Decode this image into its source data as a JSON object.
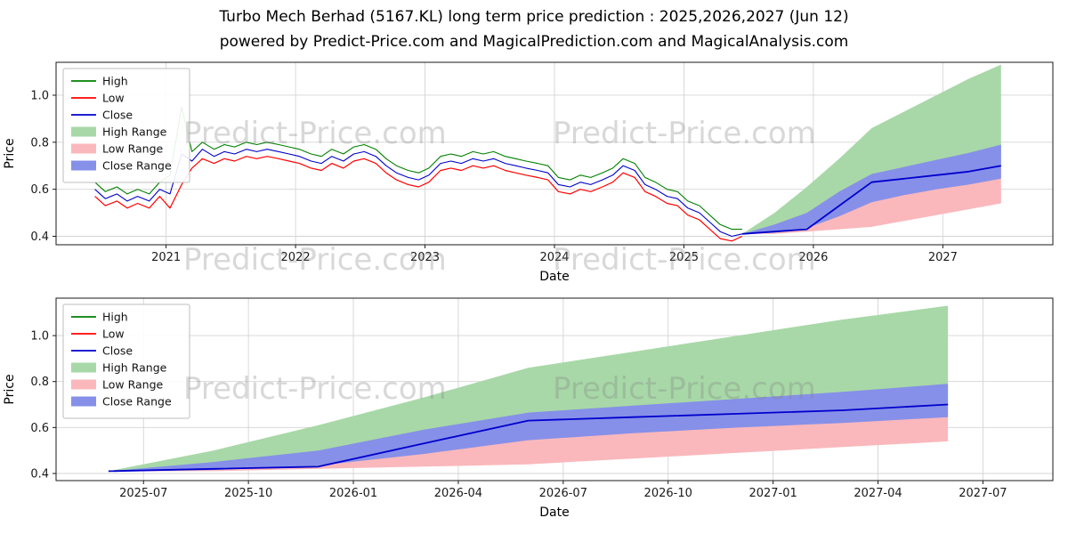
{
  "title": "Turbo Mech Berhad (5167.KL) long term price prediction : 2025,2026,2027 (Jun 12)",
  "subtitle": "powered by Predict-Price.com and MagicalPrediction.com and MagicalAnalysis.com",
  "watermark": "Predict-Price.com",
  "colors": {
    "high_line": "#008000",
    "low_line": "#ff0000",
    "close_line": "#0000cd",
    "high_range_fill": "#a8d8a8",
    "low_range_fill": "#fab8bc",
    "close_range_fill": "#8690e8"
  },
  "chart_data": [
    {
      "name": "price-history-and-forecast",
      "type": "line",
      "xlabel": "Date",
      "ylabel": "Price",
      "xlim": [
        2020.15,
        2027.85
      ],
      "ylim": [
        0.364,
        1.14
      ],
      "grid": true,
      "legend_position": "upper-left",
      "xticks": [
        {
          "v": 2021,
          "label": "2021"
        },
        {
          "v": 2022,
          "label": "2022"
        },
        {
          "v": 2023,
          "label": "2023"
        },
        {
          "v": 2024,
          "label": "2024"
        },
        {
          "v": 2025,
          "label": "2025"
        },
        {
          "v": 2026,
          "label": "2026"
        },
        {
          "v": 2027,
          "label": "2027"
        }
      ],
      "yticks": [
        {
          "v": 0.4,
          "label": "0.4"
        },
        {
          "v": 0.6,
          "label": "0.6"
        },
        {
          "v": 0.8,
          "label": "0.8"
        },
        {
          "v": 1.0,
          "label": "1.0"
        }
      ],
      "series": {
        "history_x": [
          2020.45,
          2020.53,
          2020.62,
          2020.7,
          2020.78,
          2020.87,
          2020.95,
          2021.03,
          2021.12,
          2021.2,
          2021.28,
          2021.37,
          2021.45,
          2021.53,
          2021.62,
          2021.7,
          2021.78,
          2021.87,
          2021.95,
          2022.03,
          2022.12,
          2022.2,
          2022.28,
          2022.37,
          2022.45,
          2022.53,
          2022.62,
          2022.7,
          2022.78,
          2022.87,
          2022.95,
          2023.03,
          2023.12,
          2023.2,
          2023.28,
          2023.37,
          2023.45,
          2023.53,
          2023.62,
          2023.7,
          2023.78,
          2023.87,
          2023.95,
          2024.03,
          2024.12,
          2024.2,
          2024.28,
          2024.37,
          2024.45,
          2024.53,
          2024.62,
          2024.7,
          2024.78,
          2024.87,
          2024.95,
          2025.03,
          2025.12,
          2025.2,
          2025.28,
          2025.37,
          2025.45
        ],
        "forecast_x": [
          2025.45,
          2025.7,
          2025.95,
          2026.2,
          2026.45,
          2026.7,
          2026.95,
          2027.2,
          2027.45
        ]
      },
      "bands": [
        {
          "name": "High Range",
          "color": "#a8d8a8",
          "x": "forecast_x",
          "top": [
            0.41,
            0.5,
            0.61,
            0.73,
            0.86,
            0.93,
            1.0,
            1.07,
            1.13
          ],
          "bottom": [
            0.41,
            0.42,
            0.43,
            0.53,
            0.63,
            0.645,
            0.66,
            0.675,
            0.7
          ]
        },
        {
          "name": "Low Range",
          "color": "#fab8bc",
          "x": "forecast_x",
          "top": [
            0.41,
            0.42,
            0.43,
            0.53,
            0.63,
            0.645,
            0.66,
            0.675,
            0.7
          ],
          "bottom": [
            0.41,
            0.41,
            0.42,
            0.43,
            0.44,
            0.465,
            0.49,
            0.515,
            0.54
          ]
        },
        {
          "name": "Close Range",
          "color": "#8690e8",
          "x": "forecast_x",
          "top": [
            0.41,
            0.45,
            0.5,
            0.59,
            0.665,
            0.695,
            0.725,
            0.755,
            0.79
          ],
          "bottom": [
            0.41,
            0.415,
            0.435,
            0.485,
            0.545,
            0.575,
            0.6,
            0.62,
            0.645
          ]
        }
      ],
      "lines": [
        {
          "name": "High",
          "color": "#008000",
          "width": 1.1,
          "x": "history_x",
          "y": [
            0.63,
            0.59,
            0.61,
            0.58,
            0.6,
            0.58,
            0.63,
            0.66,
            0.95,
            0.76,
            0.8,
            0.77,
            0.79,
            0.78,
            0.8,
            0.79,
            0.8,
            0.79,
            0.78,
            0.77,
            0.75,
            0.74,
            0.77,
            0.75,
            0.78,
            0.79,
            0.77,
            0.73,
            0.7,
            0.68,
            0.67,
            0.69,
            0.74,
            0.75,
            0.74,
            0.76,
            0.75,
            0.76,
            0.74,
            0.73,
            0.72,
            0.71,
            0.7,
            0.65,
            0.64,
            0.66,
            0.65,
            0.67,
            0.69,
            0.73,
            0.71,
            0.65,
            0.63,
            0.6,
            0.59,
            0.55,
            0.53,
            0.49,
            0.45,
            0.43,
            0.43
          ]
        },
        {
          "name": "Close",
          "color": "#0000cd",
          "width": 1.1,
          "x": "history_x",
          "y": [
            0.6,
            0.56,
            0.58,
            0.55,
            0.57,
            0.55,
            0.6,
            0.58,
            0.75,
            0.72,
            0.77,
            0.74,
            0.76,
            0.75,
            0.77,
            0.76,
            0.77,
            0.76,
            0.75,
            0.74,
            0.72,
            0.71,
            0.74,
            0.72,
            0.75,
            0.76,
            0.74,
            0.7,
            0.67,
            0.65,
            0.64,
            0.66,
            0.71,
            0.72,
            0.71,
            0.73,
            0.72,
            0.73,
            0.71,
            0.7,
            0.69,
            0.68,
            0.67,
            0.62,
            0.61,
            0.63,
            0.62,
            0.64,
            0.66,
            0.7,
            0.68,
            0.62,
            0.6,
            0.57,
            0.56,
            0.52,
            0.5,
            0.46,
            0.42,
            0.4,
            0.41
          ]
        },
        {
          "name": "Low",
          "color": "#ff0000",
          "width": 1.2,
          "x": "history_x",
          "y": [
            0.57,
            0.53,
            0.55,
            0.52,
            0.54,
            0.52,
            0.57,
            0.52,
            0.62,
            0.69,
            0.73,
            0.71,
            0.73,
            0.72,
            0.74,
            0.73,
            0.74,
            0.73,
            0.72,
            0.71,
            0.69,
            0.68,
            0.71,
            0.69,
            0.72,
            0.73,
            0.71,
            0.67,
            0.64,
            0.62,
            0.61,
            0.63,
            0.68,
            0.69,
            0.68,
            0.7,
            0.69,
            0.7,
            0.68,
            0.67,
            0.66,
            0.65,
            0.64,
            0.59,
            0.58,
            0.6,
            0.59,
            0.61,
            0.63,
            0.67,
            0.65,
            0.59,
            0.57,
            0.54,
            0.53,
            0.49,
            0.47,
            0.43,
            0.39,
            0.38,
            0.4
          ]
        },
        {
          "name": "Close Forecast",
          "color": "#0000cd",
          "width": 1.8,
          "x": "forecast_x",
          "y": [
            0.41,
            0.42,
            0.43,
            0.53,
            0.63,
            0.645,
            0.66,
            0.675,
            0.7
          ]
        }
      ],
      "legend": [
        {
          "label": "High",
          "type": "line",
          "color": "#008000"
        },
        {
          "label": "Low",
          "type": "line",
          "color": "#ff0000"
        },
        {
          "label": "Close",
          "type": "line",
          "color": "#0000cd"
        },
        {
          "label": "High Range",
          "type": "patch",
          "color": "#a8d8a8"
        },
        {
          "label": "Low Range",
          "type": "patch",
          "color": "#fab8bc"
        },
        {
          "label": "Close Range",
          "type": "patch",
          "color": "#8690e8"
        }
      ]
    },
    {
      "name": "forecast-detail",
      "type": "line",
      "xlabel": "Date",
      "ylabel": "Price",
      "xlim": [
        -1.5,
        27
      ],
      "ylim": [
        0.369,
        1.163
      ],
      "grid": true,
      "legend_position": "upper-left",
      "xticks": [
        {
          "v": 1,
          "label": "2025-07"
        },
        {
          "v": 4,
          "label": "2025-10"
        },
        {
          "v": 7,
          "label": "2026-01"
        },
        {
          "v": 10,
          "label": "2026-04"
        },
        {
          "v": 13,
          "label": "2026-07"
        },
        {
          "v": 16,
          "label": "2026-10"
        },
        {
          "v": 19,
          "label": "2027-01"
        },
        {
          "v": 22,
          "label": "2027-04"
        },
        {
          "v": 25,
          "label": "2027-07"
        }
      ],
      "yticks": [
        {
          "v": 0.4,
          "label": "0.4"
        },
        {
          "v": 0.6,
          "label": "0.6"
        },
        {
          "v": 0.8,
          "label": "0.8"
        },
        {
          "v": 1.0,
          "label": "1.0"
        }
      ],
      "series": {
        "forecast_x": [
          0,
          3,
          6,
          9,
          12,
          15,
          18,
          21,
          24
        ]
      },
      "bands": [
        {
          "name": "High Range",
          "color": "#a8d8a8",
          "x": "forecast_x",
          "top": [
            0.41,
            0.5,
            0.61,
            0.73,
            0.86,
            0.93,
            1.0,
            1.07,
            1.13
          ],
          "bottom": [
            0.41,
            0.42,
            0.43,
            0.53,
            0.63,
            0.645,
            0.66,
            0.675,
            0.7
          ]
        },
        {
          "name": "Low Range",
          "color": "#fab8bc",
          "x": "forecast_x",
          "top": [
            0.41,
            0.42,
            0.43,
            0.53,
            0.63,
            0.645,
            0.66,
            0.675,
            0.7
          ],
          "bottom": [
            0.41,
            0.41,
            0.42,
            0.43,
            0.44,
            0.465,
            0.49,
            0.515,
            0.54
          ]
        },
        {
          "name": "Close Range",
          "color": "#8690e8",
          "x": "forecast_x",
          "top": [
            0.41,
            0.45,
            0.5,
            0.59,
            0.665,
            0.695,
            0.725,
            0.755,
            0.79
          ],
          "bottom": [
            0.41,
            0.415,
            0.435,
            0.485,
            0.545,
            0.575,
            0.6,
            0.62,
            0.645
          ]
        }
      ],
      "lines": [
        {
          "name": "Close Forecast",
          "color": "#0000cd",
          "width": 1.8,
          "x": "forecast_x",
          "y": [
            0.41,
            0.42,
            0.43,
            0.53,
            0.63,
            0.645,
            0.66,
            0.675,
            0.7
          ]
        }
      ],
      "legend": [
        {
          "label": "High",
          "type": "line",
          "color": "#008000"
        },
        {
          "label": "Low",
          "type": "line",
          "color": "#ff0000"
        },
        {
          "label": "Close",
          "type": "line",
          "color": "#0000cd"
        },
        {
          "label": "High Range",
          "type": "patch",
          "color": "#a8d8a8"
        },
        {
          "label": "Low Range",
          "type": "patch",
          "color": "#fab8bc"
        },
        {
          "label": "Close Range",
          "type": "patch",
          "color": "#8690e8"
        }
      ]
    }
  ]
}
